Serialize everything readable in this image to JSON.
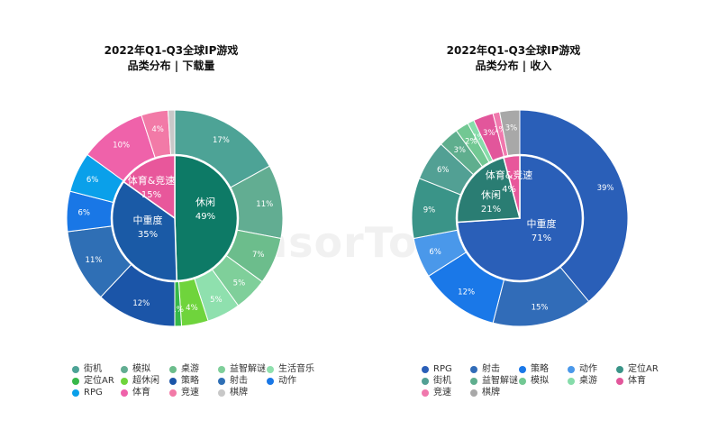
{
  "watermark": "SensorTower",
  "chart_data": [
    {
      "type": "pie",
      "title": "2022年Q1-Q3全球IP游戏",
      "subtitle": "品类分布 | 下载量",
      "inner_ring": [
        {
          "name": "休闲",
          "value": 49,
          "label": "49%",
          "color": "#0d7a66"
        },
        {
          "name": "中重度",
          "value": 35,
          "label": "35%",
          "color": "#1a5aa6"
        },
        {
          "name": "体育&竞速",
          "value": 15,
          "label": "15%",
          "color": "#e8579b"
        }
      ],
      "outer_ring": [
        {
          "name": "街机",
          "value": 17,
          "label": "17%",
          "color": "#4da396"
        },
        {
          "name": "模拟",
          "value": 11,
          "label": "11%",
          "color": "#62ad92"
        },
        {
          "name": "桌游",
          "value": 7,
          "label": "7%",
          "color": "#6cbd8c"
        },
        {
          "name": "益智解谜",
          "value": 5,
          "label": "5%",
          "color": "#7fcf9a"
        },
        {
          "name": "生活音乐",
          "value": 5,
          "label": "5%",
          "color": "#8fe0ae"
        },
        {
          "name": "超休闲",
          "value": 4,
          "label": "4%",
          "color": "#6fd43c"
        },
        {
          "name": "定位AR",
          "value": 1,
          "label": "1%",
          "color": "#37b84a"
        },
        {
          "name": "策略",
          "value": 12,
          "label": "12%",
          "color": "#1b55a8"
        },
        {
          "name": "射击",
          "value": 11,
          "label": "11%",
          "color": "#2f6fb5"
        },
        {
          "name": "动作",
          "value": 6,
          "label": "6%",
          "color": "#1977e6"
        },
        {
          "name": "RPG",
          "value": 6,
          "label": "6%",
          "color": "#0aa0ea"
        },
        {
          "name": "体育",
          "value": 10,
          "label": "10%",
          "color": "#ef62aa"
        },
        {
          "name": "竞速",
          "value": 4,
          "label": "4%",
          "color": "#f27aa7"
        },
        {
          "name": "棋牌",
          "value": 1,
          "label": "",
          "color": "#c8c8c8"
        }
      ],
      "legend": [
        {
          "name": "街机",
          "color": "#4da396"
        },
        {
          "name": "模拟",
          "color": "#62ad92"
        },
        {
          "name": "桌游",
          "color": "#6cbd8c"
        },
        {
          "name": "益智解谜",
          "color": "#7fcf9a"
        },
        {
          "name": "生活音乐",
          "color": "#8fe0ae"
        },
        {
          "name": "定位AR",
          "color": "#37b84a"
        },
        {
          "name": "超休闲",
          "color": "#6fd43c"
        },
        {
          "name": "策略",
          "color": "#1b55a8"
        },
        {
          "name": "射击",
          "color": "#2f6fb5"
        },
        {
          "name": "动作",
          "color": "#1977e6"
        },
        {
          "name": "RPG",
          "color": "#0aa0ea"
        },
        {
          "name": "体育",
          "color": "#ef62aa"
        },
        {
          "name": "竞速",
          "color": "#f27aa7"
        },
        {
          "name": "棋牌",
          "color": "#c8c8c8"
        }
      ]
    },
    {
      "type": "pie",
      "title": "2022年Q1-Q3全球IP游戏",
      "subtitle": "品类分布 | 收入",
      "inner_ring": [
        {
          "name": "中重度",
          "value": 71,
          "label": "71%",
          "color": "#2a5fb8"
        },
        {
          "name": "休闲",
          "value": 21,
          "label": "21%",
          "color": "#2a7d73"
        },
        {
          "name": "体育&竞速",
          "value": 4,
          "label": "4%",
          "color": "#e8579b"
        }
      ],
      "outer_ring": [
        {
          "name": "RPG",
          "value": 39,
          "label": "39%",
          "color": "#2a5fb8"
        },
        {
          "name": "射击",
          "value": 15,
          "label": "15%",
          "color": "#316cb8"
        },
        {
          "name": "策略",
          "value": 12,
          "label": "12%",
          "color": "#1a78e8"
        },
        {
          "name": "动作",
          "value": 6,
          "label": "6%",
          "color": "#4a98ea"
        },
        {
          "name": "定位AR",
          "value": 9,
          "label": "9%",
          "color": "#3a9488"
        },
        {
          "name": "街机",
          "value": 6,
          "label": "6%",
          "color": "#52a094"
        },
        {
          "name": "益智解谜",
          "value": 3,
          "label": "3%",
          "color": "#5fae8e"
        },
        {
          "name": "模拟",
          "value": 2,
          "label": "2%",
          "color": "#72c893"
        },
        {
          "name": "桌游",
          "value": 1,
          "label": "1%",
          "color": "#86dcaa"
        },
        {
          "name": "体育",
          "value": 3,
          "label": "3%",
          "color": "#e2569b"
        },
        {
          "name": "竞速",
          "value": 1,
          "label": "1%",
          "color": "#f078ad"
        },
        {
          "name": "棋牌",
          "value": 3,
          "label": "3%",
          "color": "#a8a8a8"
        }
      ],
      "legend": [
        {
          "name": "RPG",
          "color": "#2a5fb8"
        },
        {
          "name": "射击",
          "color": "#316cb8"
        },
        {
          "name": "策略",
          "color": "#1a78e8"
        },
        {
          "name": "动作",
          "color": "#4a98ea"
        },
        {
          "name": "定位AR",
          "color": "#3a9488"
        },
        {
          "name": "街机",
          "color": "#52a094"
        },
        {
          "name": "益智解谜",
          "color": "#5fae8e"
        },
        {
          "name": "模拟",
          "color": "#72c893"
        },
        {
          "name": "桌游",
          "color": "#86dcaa"
        },
        {
          "name": "体育",
          "color": "#e2569b"
        },
        {
          "name": "竞速",
          "color": "#f078ad"
        },
        {
          "name": "棋牌",
          "color": "#a8a8a8"
        }
      ]
    }
  ]
}
